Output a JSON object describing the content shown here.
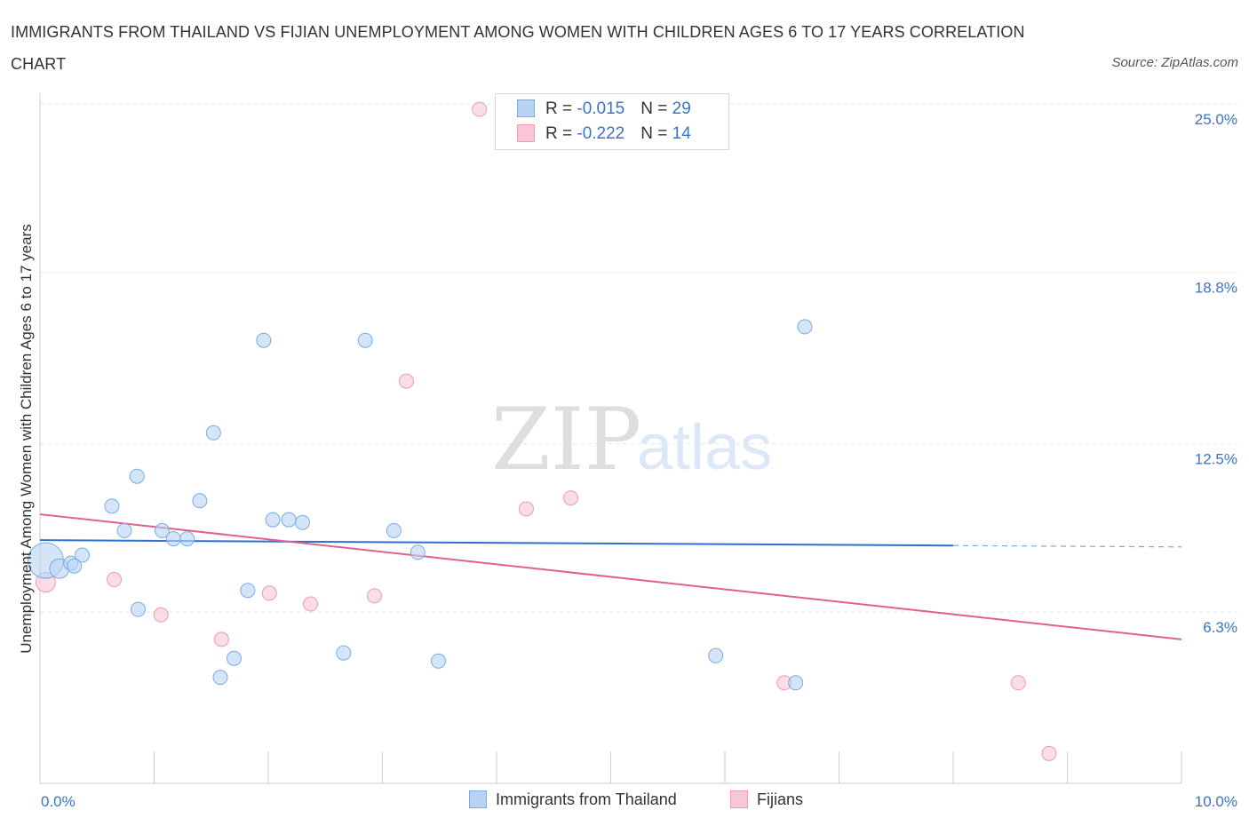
{
  "title": "IMMIGRANTS FROM THAILAND VS FIJIAN UNEMPLOYMENT AMONG WOMEN WITH CHILDREN AGES 6 TO 17 YEARS CORRELATION CHART",
  "source": "Source: ZipAtlas.com",
  "watermark": {
    "zip": "ZIP",
    "atlas": "atlas"
  },
  "colors": {
    "thailand_fill": "#b9d3f3",
    "thailand_stroke": "#7aaae6",
    "thailand_line": "#2f6fd0",
    "fijian_fill": "#f8c6d5",
    "fijian_stroke": "#ef9ab4",
    "fijian_line": "#e0608e",
    "accent_text": "#3a74c9"
  },
  "legend_top": {
    "rows": [
      {
        "r_label": "R = ",
        "r_value": "-0.015",
        "n_label": "N = ",
        "n_value": "29"
      },
      {
        "r_label": "R = ",
        "r_value": "-0.222",
        "n_label": "N = ",
        "n_value": "14"
      }
    ]
  },
  "legend_bottom": {
    "items": [
      "Immigrants from Thailand",
      "Fijians"
    ]
  },
  "chart_data": {
    "type": "scatter",
    "title": "IMMIGRANTS FROM THAILAND VS FIJIAN UNEMPLOYMENT AMONG WOMEN WITH CHILDREN AGES 6 TO 17 YEARS CORRELATION CHART",
    "xlabel": "",
    "ylabel": "Unemployment Among Women with Children Ages 6 to 17 years",
    "xlim": [
      0,
      10
    ],
    "ylim": [
      0,
      25.5
    ],
    "x_tick_labels": [
      "0.0%",
      "10.0%"
    ],
    "y_ticks": [
      6.3,
      12.5,
      18.8,
      25.0
    ],
    "y_tick_labels": [
      "6.3%",
      "12.5%",
      "18.8%",
      "25.0%"
    ],
    "grid": true,
    "series": [
      {
        "name": "Immigrants from Thailand",
        "r": -0.015,
        "n": 29,
        "trend": {
          "x0": 0,
          "y0": 8.95,
          "x1": 8.0,
          "y1": 8.75,
          "dashed_to_x": 10.0,
          "dashed_y": 8.7
        },
        "points": [
          [
            0.05,
            8.2,
            20
          ],
          [
            0.17,
            7.9,
            11
          ],
          [
            0.27,
            8.1,
            8
          ],
          [
            0.37,
            8.4,
            8
          ],
          [
            0.63,
            10.2,
            8
          ],
          [
            0.74,
            9.3,
            8
          ],
          [
            0.85,
            11.3,
            8
          ],
          [
            0.86,
            6.4,
            8
          ],
          [
            1.07,
            9.3,
            8
          ],
          [
            1.17,
            9.0,
            8
          ],
          [
            1.29,
            9.0,
            8
          ],
          [
            1.4,
            10.4,
            8
          ],
          [
            1.52,
            12.9,
            8
          ],
          [
            1.58,
            3.9,
            8
          ],
          [
            1.7,
            4.6,
            8
          ],
          [
            1.82,
            7.1,
            8
          ],
          [
            1.96,
            16.3,
            8
          ],
          [
            2.04,
            9.7,
            8
          ],
          [
            2.18,
            9.7,
            8
          ],
          [
            2.3,
            9.6,
            8
          ],
          [
            2.66,
            4.8,
            8
          ],
          [
            2.85,
            16.3,
            8
          ],
          [
            3.1,
            9.3,
            8
          ],
          [
            3.31,
            8.5,
            8
          ],
          [
            3.49,
            4.5,
            8
          ],
          [
            5.92,
            4.7,
            8
          ],
          [
            6.62,
            3.7,
            8
          ],
          [
            6.7,
            16.8,
            8
          ],
          [
            0.3,
            8.0,
            8
          ]
        ]
      },
      {
        "name": "Fijians",
        "r": -0.222,
        "n": 14,
        "trend": {
          "x0": 0,
          "y0": 9.9,
          "x1": 10.0,
          "y1": 5.3
        },
        "points": [
          [
            0.05,
            7.4,
            11
          ],
          [
            0.65,
            7.5,
            8
          ],
          [
            1.06,
            6.2,
            8
          ],
          [
            1.59,
            5.3,
            8
          ],
          [
            2.01,
            7.0,
            8
          ],
          [
            2.37,
            6.6,
            8
          ],
          [
            2.93,
            6.9,
            8
          ],
          [
            3.21,
            14.8,
            8
          ],
          [
            3.85,
            24.8,
            8
          ],
          [
            4.26,
            10.1,
            8
          ],
          [
            4.65,
            10.5,
            8
          ],
          [
            6.52,
            3.7,
            8
          ],
          [
            8.57,
            3.7,
            8
          ],
          [
            8.84,
            1.1,
            8
          ]
        ]
      }
    ]
  }
}
